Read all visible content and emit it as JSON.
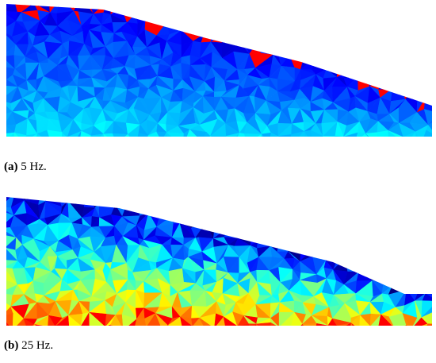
{
  "panels": [
    {
      "label": "(a)",
      "caption": "5 Hz."
    },
    {
      "label": "(b)",
      "caption": "25 Hz."
    }
  ]
}
